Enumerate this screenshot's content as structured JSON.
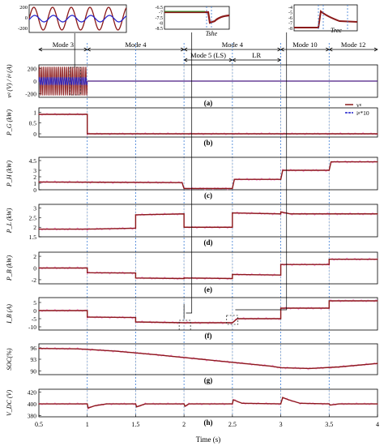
{
  "figure": {
    "xlabel": "Time (s)",
    "xticks": [
      "0.5",
      "1",
      "1.5",
      "2",
      "2.5",
      "3",
      "3.5",
      "4"
    ],
    "colors": {
      "wave": "#8B1A1A",
      "current": "#1F1FCC",
      "ref": "#FF88D8",
      "grid": "#c8c8c8",
      "divider": "#3a7bd5"
    },
    "mode_labels": [
      "Mode 3",
      "Mode 4",
      "Mode 5 (LS)",
      "Mode 4",
      "LR",
      "Mode 10",
      "Mode 12"
    ],
    "legend": [
      {
        "text": "vᵍ"
      },
      {
        "text": "iᵍ*10"
      }
    ],
    "inset_labels": {
      "tshe": "T_she",
      "trec": "T_rec"
    }
  },
  "chart_data": [
    {
      "type": "line",
      "panel_label": "(a)",
      "ylabel": "vᵍ (V) / iᵍ (A)",
      "yticks": [
        "200",
        "0",
        "-200"
      ],
      "ylim": [
        -260,
        260
      ],
      "series": [
        {
          "name": "vᵍ",
          "note": "50 Hz sinusoid, amplitude ~230 V, present 0.5–1.0 s"
        },
        {
          "name": "iᵍ*10",
          "note": "amplitude ~60, present 0.5–1.0 s"
        }
      ]
    },
    {
      "type": "line",
      "panel_label": "(b)",
      "ylabel": "P_G (kW)",
      "yticks": [
        "1",
        "0.5",
        "0"
      ],
      "ylim": [
        -0.15,
        1.2
      ],
      "x": [
        0.5,
        1.0,
        1.0,
        4.0
      ],
      "values": [
        0.9,
        0.9,
        0.0,
        0.0
      ]
    },
    {
      "type": "line",
      "panel_label": "(c)",
      "ylabel": "P_H (kW)",
      "yticks": [
        "4.5",
        "3",
        "2",
        "1",
        "0"
      ],
      "ylim": [
        0,
        5
      ],
      "x": [
        0.5,
        1.98,
        2.0,
        2.5,
        2.52,
        3.0,
        3.02,
        3.5,
        3.52,
        4.0
      ],
      "values": [
        1.2,
        1.1,
        0.2,
        0.2,
        1.6,
        1.6,
        3.0,
        3.0,
        4.3,
        4.3
      ]
    },
    {
      "type": "line",
      "panel_label": "(d)",
      "ylabel": "P_L (kW)",
      "yticks": [
        "3",
        "2.5",
        "2",
        "1.5"
      ],
      "ylim": [
        1.5,
        3.2
      ],
      "x": [
        0.5,
        1.0,
        1.0,
        1.5,
        1.5,
        2.0,
        2.0,
        2.5,
        2.5,
        3.0,
        3.0,
        3.1,
        4.0
      ],
      "values": [
        1.9,
        1.9,
        1.9,
        1.95,
        2.65,
        2.7,
        2.0,
        2.0,
        2.75,
        2.7,
        2.8,
        2.7,
        2.7
      ]
    },
    {
      "type": "line",
      "panel_label": "(e)",
      "ylabel": "P_B (kW)",
      "yticks": [
        "2",
        "0",
        "-2"
      ],
      "ylim": [
        -2.7,
        2.7
      ],
      "x": [
        0.5,
        1.0,
        1.0,
        1.5,
        1.5,
        2.0,
        2.0,
        2.5,
        2.5,
        3.0,
        3.0,
        3.5,
        3.5,
        4.0
      ],
      "values": [
        0.0,
        0.0,
        -0.8,
        -0.85,
        -1.7,
        -1.8,
        -1.7,
        -1.8,
        -1.1,
        -1.2,
        0.6,
        0.6,
        1.5,
        1.5
      ]
    },
    {
      "type": "line",
      "panel_label": "(f)",
      "ylabel": "I_B (A)",
      "yticks": [
        "5",
        "0",
        "-5",
        "-10"
      ],
      "ylim": [
        -12,
        8
      ],
      "x": [
        0.5,
        1.0,
        1.0,
        1.5,
        1.5,
        2.0,
        2.05,
        2.5,
        2.55,
        3.0,
        3.0,
        3.5,
        3.5,
        4.0
      ],
      "values": [
        0.0,
        0.0,
        -4.0,
        -4.3,
        -7.0,
        -7.5,
        -7.5,
        -7.5,
        -5.0,
        -5.0,
        1.5,
        1.5,
        6.0,
        6.0
      ]
    },
    {
      "type": "line",
      "panel_label": "(g)",
      "ylabel": "SOC(%)",
      "yticks": [
        "96",
        "93",
        "90"
      ],
      "ylim": [
        89,
        97
      ],
      "x": [
        0.5,
        0.9,
        1.3,
        1.7,
        2.1,
        2.5,
        2.9,
        3.0,
        3.3,
        3.6,
        4.0
      ],
      "values": [
        95.8,
        95.7,
        95.1,
        94.2,
        93.2,
        92.2,
        91.2,
        90.8,
        90.6,
        91.0,
        91.9
      ]
    },
    {
      "type": "line",
      "panel_label": "(h)",
      "ylabel": "V_DC (V)",
      "yticks": [
        "420",
        "400",
        "380"
      ],
      "ylim": [
        378,
        425
      ],
      "x": [
        0.5,
        1.0,
        1.01,
        1.08,
        1.2,
        1.5,
        1.51,
        1.6,
        2.0,
        2.01,
        2.05,
        2.5,
        2.51,
        2.6,
        3.0,
        3.02,
        3.08,
        3.2,
        3.5,
        3.51,
        3.6,
        4.0
      ],
      "values": [
        400,
        400,
        393,
        397,
        400,
        400,
        395,
        400,
        400,
        396,
        400,
        400,
        407,
        401,
        400,
        411,
        407,
        401,
        400,
        398,
        400,
        400
      ]
    }
  ]
}
